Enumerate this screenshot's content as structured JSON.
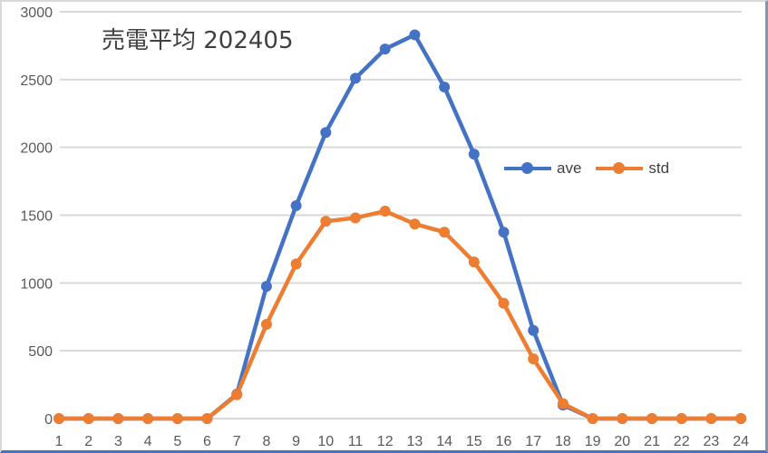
{
  "chart_data": {
    "type": "line",
    "title": "売電平均 202405",
    "xlabel": "",
    "ylabel": "",
    "ylim": [
      0,
      3000
    ],
    "yticks": [
      0,
      500,
      1000,
      1500,
      2000,
      2500,
      3000
    ],
    "grid": true,
    "legend_position": "right-middle (inside plot)",
    "categories": [
      "1",
      "2",
      "3",
      "4",
      "5",
      "6",
      "7",
      "8",
      "9",
      "10",
      "11",
      "12",
      "13",
      "14",
      "15",
      "16",
      "17",
      "18",
      "19",
      "20",
      "21",
      "22",
      "23",
      "24"
    ],
    "series": [
      {
        "name": "ave",
        "color": "#4472c4",
        "values": [
          0,
          0,
          0,
          0,
          0,
          0,
          180,
          975,
          1570,
          2110,
          2510,
          2725,
          2830,
          2445,
          1950,
          1375,
          650,
          100,
          0,
          0,
          0,
          0,
          0,
          0
        ]
      },
      {
        "name": "std",
        "color": "#ed7d31",
        "values": [
          0,
          0,
          0,
          0,
          0,
          0,
          175,
          695,
          1140,
          1455,
          1480,
          1530,
          1435,
          1375,
          1155,
          850,
          440,
          110,
          0,
          0,
          0,
          0,
          0,
          0
        ]
      }
    ]
  },
  "title": "売電平均 202405",
  "legend": [
    {
      "label": "ave",
      "color": "#4472c4"
    },
    {
      "label": "std",
      "color": "#ed7d31"
    }
  ],
  "colors": {
    "grid": "#d9d9d9",
    "axis_text": "#595959",
    "title_text": "#404040"
  }
}
